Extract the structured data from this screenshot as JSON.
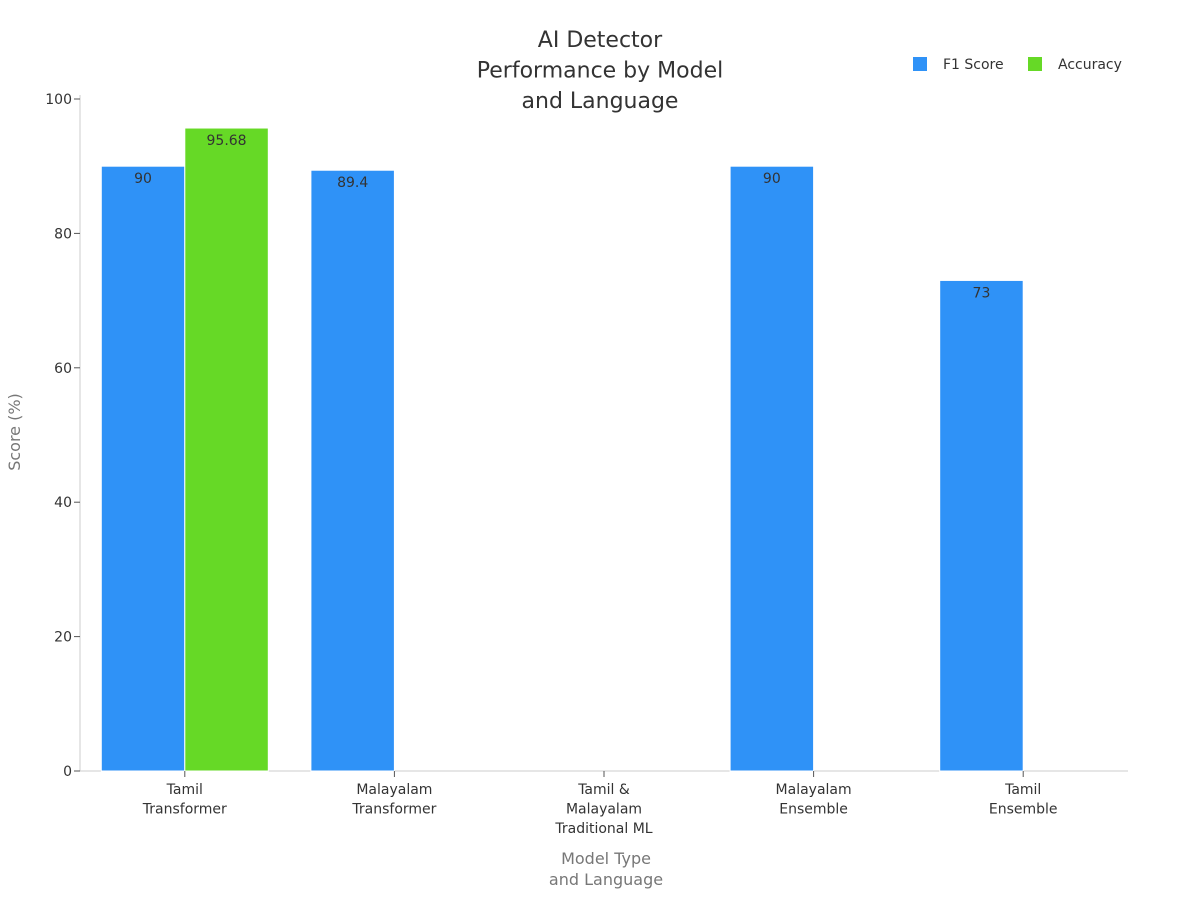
{
  "chart_data": {
    "type": "bar",
    "title": [
      "AI Detector",
      "Performance by Model",
      "and Language"
    ],
    "xlabel": [
      "Model Type",
      "and Language"
    ],
    "ylabel": "Score (%)",
    "ylim": [
      0,
      100
    ],
    "yticks": [
      0,
      20,
      40,
      60,
      80,
      100
    ],
    "grid": false,
    "legend_position": "top-right",
    "categories": [
      [
        "Tamil",
        "Transformer"
      ],
      [
        "Malayalam",
        "Transformer"
      ],
      [
        "Tamil &",
        "Malayalam",
        "Traditional ML"
      ],
      [
        "Malayalam",
        "Ensemble"
      ],
      [
        "Tamil",
        "Ensemble"
      ]
    ],
    "series": [
      {
        "name": "F1 Score",
        "color": "#2f92f7",
        "values": [
          90,
          89.4,
          null,
          90,
          73
        ]
      },
      {
        "name": "Accuracy",
        "color": "#66d926",
        "values": [
          95.68,
          null,
          null,
          null,
          null
        ]
      }
    ]
  }
}
